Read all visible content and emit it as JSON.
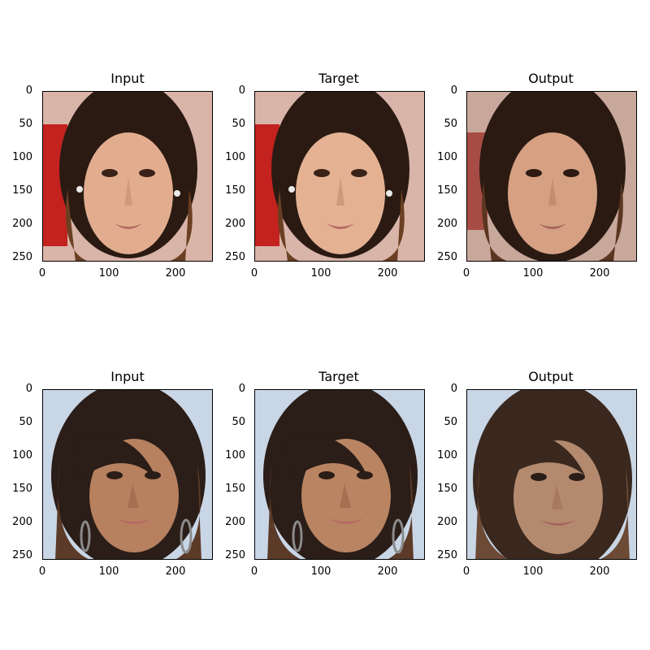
{
  "figure": {
    "row1": {
      "titles": [
        "Input",
        "Target",
        "Output"
      ],
      "subject": "woman with long brown hair and earrings"
    },
    "row2": {
      "titles": [
        "Input",
        "Target",
        "Output"
      ],
      "subject": "woman with side-swept bangs and hoop earrings"
    },
    "axes": {
      "y_ticks": [
        "0",
        "50",
        "100",
        "150",
        "200",
        "250"
      ],
      "x_ticks": [
        "0",
        "100",
        "200"
      ]
    },
    "colors": {
      "row1_background": "#d9b4a8",
      "row1_red_backdrop": "#c3221f",
      "row2_background": "#c9d6e6",
      "hair_dark": "#2a1a12",
      "hair_brown": "#6b3f22",
      "skin_light": "#e2ad8f",
      "skin_tan": "#b7805f"
    }
  }
}
